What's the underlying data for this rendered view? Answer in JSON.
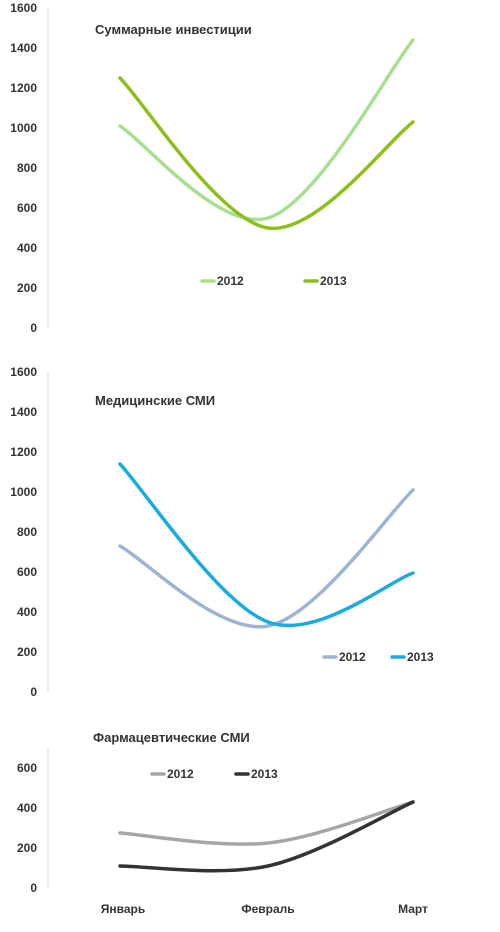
{
  "chart_data": [
    {
      "type": "line",
      "title": "Суммарные инвестиции",
      "categories": [
        "Январь",
        "Февраль",
        "Март"
      ],
      "ylim": [
        0,
        1600
      ],
      "yticks": [
        0,
        200,
        400,
        600,
        800,
        1000,
        1200,
        1400,
        1600
      ],
      "legend_position": "bottom",
      "series": [
        {
          "name": "2012",
          "color": "#a6e08f",
          "values": [
            1010,
            550,
            1440
          ]
        },
        {
          "name": "2013",
          "color": "#8cbf1a",
          "values": [
            1250,
            500,
            1030
          ]
        }
      ]
    },
    {
      "type": "line",
      "title": "Медицинские СМИ",
      "categories": [
        "Январь",
        "Февраль",
        "Март"
      ],
      "ylim": [
        0,
        1600
      ],
      "yticks": [
        0,
        200,
        400,
        600,
        800,
        1000,
        1200,
        1400,
        1600
      ],
      "legend_position": "bottom-right",
      "series": [
        {
          "name": "2012",
          "color": "#9bb5d2",
          "values": [
            730,
            330,
            1010
          ]
        },
        {
          "name": "2013",
          "color": "#1aabe0",
          "values": [
            1140,
            350,
            595
          ]
        }
      ]
    },
    {
      "type": "line",
      "title": "Фармацевтические СМИ",
      "categories": [
        "Январь",
        "Февраль",
        "Март"
      ],
      "ylim": [
        0,
        700
      ],
      "yticks": [
        0,
        200,
        400,
        600
      ],
      "legend_position": "top-left",
      "series": [
        {
          "name": "2012",
          "color": "#a6a6a6",
          "values": [
            275,
            225,
            430
          ]
        },
        {
          "name": "2013",
          "color": "#333333",
          "values": [
            110,
            110,
            430
          ]
        }
      ]
    }
  ]
}
